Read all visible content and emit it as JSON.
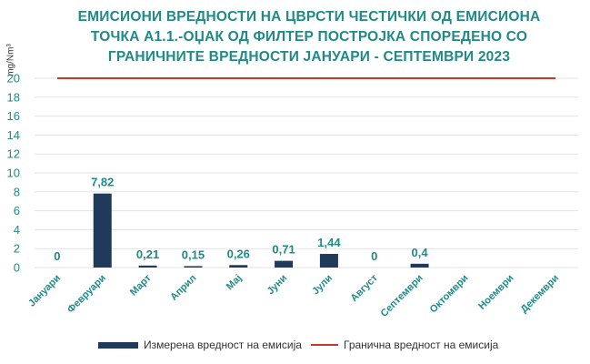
{
  "chart_data": {
    "type": "bar",
    "title_lines": [
      "ЕМИСИОНИ ВРЕДНОСТИ НА ЦВРСТИ ЧЕСТИЧКИ ОД ЕМИСИОНА",
      "ТОЧКА А1.1.-ОЏАК ОД ФИЛТЕР ПОСТРОЈКА СПОРЕДЕНО СО",
      "ГРАНИЧНИТЕ ВРЕДНОСТИ ЈАНУАРИ - СЕПТЕМВРИ 2023"
    ],
    "ylabel": "mg/Nm³",
    "ylim": [
      0,
      20
    ],
    "yticks": [
      "0",
      "2",
      "4",
      "6",
      "8",
      "10",
      "12",
      "14",
      "16",
      "18",
      "20"
    ],
    "grid": true,
    "legend_position": "bottom",
    "categories": [
      "Јануари",
      "Февруари",
      "Март",
      "Април",
      "Мај",
      "Јуни",
      "Јули",
      "Август",
      "Септември",
      "Октомври",
      "Ноември",
      "Декември"
    ],
    "series": [
      {
        "name": "Измерена вредност на емисија",
        "type": "bar",
        "color": "#1f3a5a",
        "values": [
          0,
          7.82,
          0.21,
          0.15,
          0.26,
          0.71,
          1.44,
          0,
          0.4,
          null,
          null,
          null
        ],
        "labels": [
          "0",
          "7,82",
          "0,21",
          "0,15",
          "0,26",
          "0,71",
          "1,44",
          "0",
          "0,4",
          "",
          "",
          ""
        ]
      },
      {
        "name": "Гранична вредност на емисија",
        "type": "line",
        "color": "#c0392b",
        "values": [
          20,
          20,
          20,
          20,
          20,
          20,
          20,
          20,
          20,
          20,
          20,
          20
        ]
      }
    ]
  }
}
